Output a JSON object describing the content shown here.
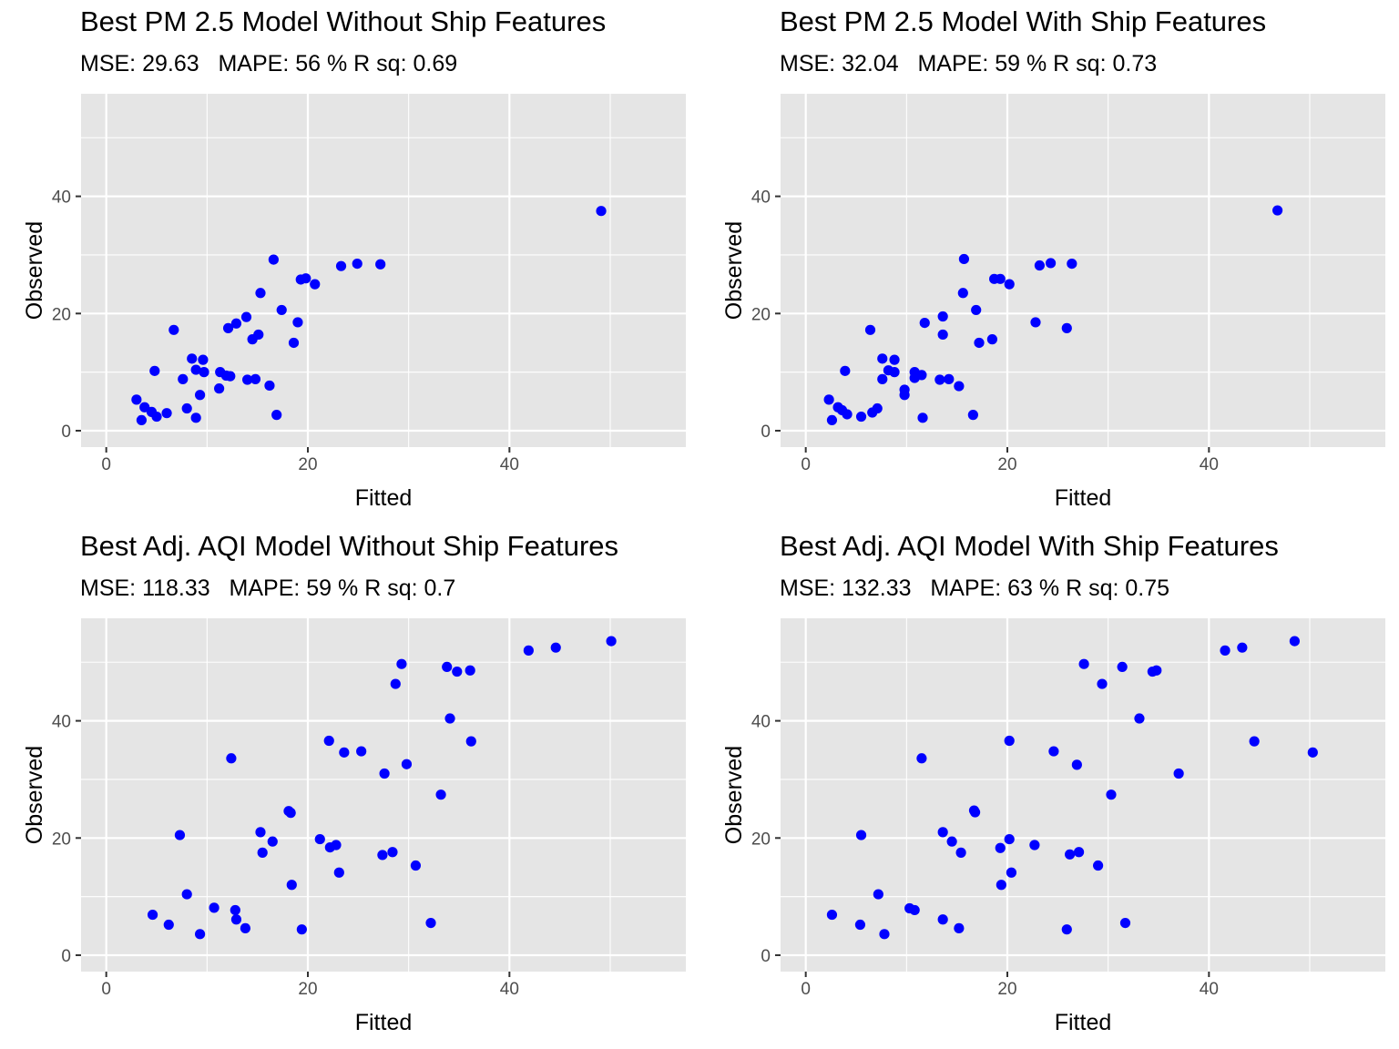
{
  "colors": {
    "panel_bg": "#e5e5e5",
    "grid": "#ffffff",
    "point": "#0000ff",
    "tick": "#4d4d4d"
  },
  "chart_data": [
    {
      "type": "scatter",
      "title": "Best PM 2.5 Model Without Ship Features",
      "metrics": {
        "mse": "MSE: 29.63",
        "mape": "MAPE: 56 %",
        "rsq": "R sq: 0.69"
      },
      "xlabel": "Fitted",
      "ylabel": "Observed",
      "xlim": [
        -2.5,
        57.5
      ],
      "ylim": [
        -2.8,
        57.5
      ],
      "xticks": [
        0,
        20,
        40
      ],
      "yticks": [
        0,
        20,
        40
      ],
      "grid": true,
      "points": [
        [
          3.0,
          5.3
        ],
        [
          3.5,
          1.8
        ],
        [
          3.8,
          4.0
        ],
        [
          4.5,
          3.2
        ],
        [
          5.0,
          2.4
        ],
        [
          4.8,
          10.2
        ],
        [
          6.0,
          3.0
        ],
        [
          6.7,
          17.2
        ],
        [
          7.6,
          8.8
        ],
        [
          8.0,
          3.8
        ],
        [
          8.5,
          12.3
        ],
        [
          8.9,
          10.4
        ],
        [
          8.9,
          2.2
        ],
        [
          9.3,
          6.1
        ],
        [
          9.6,
          12.1
        ],
        [
          9.7,
          10.0
        ],
        [
          11.2,
          7.2
        ],
        [
          11.3,
          10.0
        ],
        [
          11.9,
          9.4
        ],
        [
          12.1,
          17.5
        ],
        [
          12.3,
          9.3
        ],
        [
          12.9,
          18.3
        ],
        [
          13.9,
          19.4
        ],
        [
          14.0,
          8.7
        ],
        [
          14.5,
          15.6
        ],
        [
          14.8,
          8.8
        ],
        [
          15.1,
          16.4
        ],
        [
          15.3,
          23.5
        ],
        [
          16.2,
          7.7
        ],
        [
          16.6,
          29.2
        ],
        [
          16.9,
          2.7
        ],
        [
          17.4,
          20.6
        ],
        [
          18.6,
          15.0
        ],
        [
          19.0,
          18.5
        ],
        [
          19.3,
          25.8
        ],
        [
          19.8,
          26.0
        ],
        [
          20.7,
          25.0
        ],
        [
          23.3,
          28.1
        ],
        [
          24.9,
          28.5
        ],
        [
          27.2,
          28.4
        ],
        [
          49.1,
          37.5
        ]
      ]
    },
    {
      "type": "scatter",
      "title": "Best PM 2.5 Model With Ship Features",
      "metrics": {
        "mse": "MSE: 32.04",
        "mape": "MAPE: 59 %",
        "rsq": "R sq: 0.73"
      },
      "xlabel": "Fitted",
      "ylabel": "Observed",
      "xlim": [
        -2.5,
        57.5
      ],
      "ylim": [
        -2.8,
        57.5
      ],
      "xticks": [
        0,
        20,
        40
      ],
      "yticks": [
        0,
        20,
        40
      ],
      "grid": true,
      "points": [
        [
          2.3,
          5.3
        ],
        [
          2.6,
          1.8
        ],
        [
          3.2,
          4.0
        ],
        [
          3.6,
          3.5
        ],
        [
          4.1,
          2.8
        ],
        [
          3.9,
          10.2
        ],
        [
          5.5,
          2.4
        ],
        [
          6.6,
          3.1
        ],
        [
          6.4,
          17.2
        ],
        [
          7.1,
          3.8
        ],
        [
          7.6,
          12.3
        ],
        [
          7.6,
          8.8
        ],
        [
          8.2,
          10.3
        ],
        [
          8.8,
          12.1
        ],
        [
          8.8,
          10.0
        ],
        [
          9.8,
          7.0
        ],
        [
          9.8,
          6.1
        ],
        [
          10.8,
          9.0
        ],
        [
          10.8,
          10.0
        ],
        [
          11.5,
          9.5
        ],
        [
          11.6,
          2.2
        ],
        [
          11.8,
          18.4
        ],
        [
          13.3,
          8.7
        ],
        [
          13.6,
          19.5
        ],
        [
          13.6,
          16.4
        ],
        [
          14.2,
          8.8
        ],
        [
          15.2,
          7.6
        ],
        [
          15.6,
          23.5
        ],
        [
          15.7,
          29.3
        ],
        [
          16.6,
          2.7
        ],
        [
          16.9,
          20.6
        ],
        [
          17.2,
          15.0
        ],
        [
          18.5,
          15.6
        ],
        [
          18.7,
          25.9
        ],
        [
          19.3,
          25.9
        ],
        [
          20.2,
          25.0
        ],
        [
          22.8,
          18.5
        ],
        [
          23.2,
          28.2
        ],
        [
          24.3,
          28.6
        ],
        [
          25.9,
          17.5
        ],
        [
          26.4,
          28.5
        ],
        [
          46.8,
          37.6
        ]
      ]
    },
    {
      "type": "scatter",
      "title": "Best Adj. AQI Model Without Ship Features",
      "metrics": {
        "mse": "MSE: 118.33",
        "mape": "MAPE: 59 %",
        "rsq": "R sq: 0.7"
      },
      "xlabel": "Fitted",
      "ylabel": "Observed",
      "xlim": [
        -2.5,
        57.5
      ],
      "ylim": [
        -2.8,
        57.5
      ],
      "xticks": [
        0,
        20,
        40
      ],
      "yticks": [
        0,
        20,
        40
      ],
      "grid": true,
      "points": [
        [
          4.6,
          6.9
        ],
        [
          6.2,
          5.2
        ],
        [
          7.3,
          20.5
        ],
        [
          8.0,
          10.4
        ],
        [
          9.3,
          3.6
        ],
        [
          10.7,
          8.1
        ],
        [
          12.4,
          33.6
        ],
        [
          12.8,
          7.7
        ],
        [
          12.9,
          6.1
        ],
        [
          13.8,
          4.6
        ],
        [
          15.3,
          21.0
        ],
        [
          15.5,
          17.5
        ],
        [
          16.5,
          19.4
        ],
        [
          18.1,
          24.6
        ],
        [
          18.3,
          24.3
        ],
        [
          18.4,
          12.0
        ],
        [
          19.4,
          4.4
        ],
        [
          21.2,
          19.8
        ],
        [
          22.1,
          36.6
        ],
        [
          22.2,
          18.4
        ],
        [
          22.8,
          18.8
        ],
        [
          23.1,
          14.1
        ],
        [
          23.6,
          34.6
        ],
        [
          25.3,
          34.8
        ],
        [
          27.4,
          17.1
        ],
        [
          27.6,
          31.0
        ],
        [
          28.4,
          17.6
        ],
        [
          28.7,
          46.3
        ],
        [
          29.3,
          49.7
        ],
        [
          29.8,
          32.6
        ],
        [
          30.7,
          15.3
        ],
        [
          32.2,
          5.5
        ],
        [
          33.2,
          27.4
        ],
        [
          33.8,
          49.2
        ],
        [
          34.1,
          40.4
        ],
        [
          34.8,
          48.4
        ],
        [
          36.1,
          48.6
        ],
        [
          36.2,
          36.5
        ],
        [
          41.9,
          52.0
        ],
        [
          44.6,
          52.5
        ],
        [
          50.1,
          53.6
        ]
      ]
    },
    {
      "type": "scatter",
      "title": "Best Adj. AQI Model With Ship Features",
      "metrics": {
        "mse": "MSE: 132.33",
        "mape": "MAPE: 63 %",
        "rsq": "R sq: 0.75"
      },
      "xlabel": "Fitted",
      "ylabel": "Observed",
      "xlim": [
        -2.5,
        57.5
      ],
      "ylim": [
        -2.8,
        57.5
      ],
      "xticks": [
        0,
        20,
        40
      ],
      "yticks": [
        0,
        20,
        40
      ],
      "grid": true,
      "points": [
        [
          2.6,
          6.9
        ],
        [
          5.4,
          5.2
        ],
        [
          5.5,
          20.5
        ],
        [
          7.2,
          10.4
        ],
        [
          7.8,
          3.6
        ],
        [
          10.3,
          8.0
        ],
        [
          10.8,
          7.7
        ],
        [
          11.5,
          33.6
        ],
        [
          13.6,
          21.0
        ],
        [
          13.6,
          6.1
        ],
        [
          14.5,
          19.4
        ],
        [
          15.2,
          4.6
        ],
        [
          15.4,
          17.5
        ],
        [
          16.7,
          24.7
        ],
        [
          16.8,
          24.4
        ],
        [
          19.3,
          18.3
        ],
        [
          19.4,
          12.0
        ],
        [
          20.2,
          19.8
        ],
        [
          20.2,
          36.6
        ],
        [
          20.4,
          14.1
        ],
        [
          22.7,
          18.8
        ],
        [
          24.6,
          34.8
        ],
        [
          25.9,
          4.4
        ],
        [
          26.2,
          17.2
        ],
        [
          26.9,
          32.5
        ],
        [
          27.1,
          17.6
        ],
        [
          27.6,
          49.7
        ],
        [
          29.0,
          15.3
        ],
        [
          29.4,
          46.3
        ],
        [
          30.3,
          27.4
        ],
        [
          31.4,
          49.2
        ],
        [
          31.7,
          5.5
        ],
        [
          33.1,
          40.4
        ],
        [
          34.4,
          48.4
        ],
        [
          34.8,
          48.6
        ],
        [
          37.0,
          31.0
        ],
        [
          41.6,
          52.0
        ],
        [
          43.3,
          52.5
        ],
        [
          44.5,
          36.5
        ],
        [
          48.5,
          53.6
        ],
        [
          50.3,
          34.6
        ]
      ]
    }
  ]
}
